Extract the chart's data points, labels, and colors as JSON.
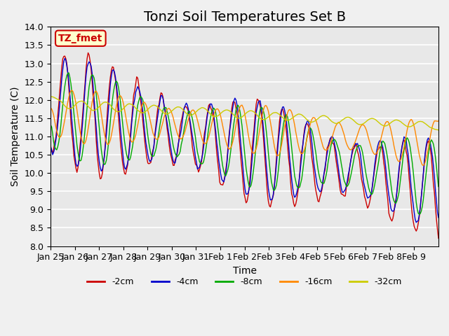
{
  "title": "Tonzi Soil Temperatures Set B",
  "xlabel": "Time",
  "ylabel": "Soil Temperature (C)",
  "ylim": [
    8.0,
    14.0
  ],
  "yticks": [
    8.0,
    8.5,
    9.0,
    9.5,
    10.0,
    10.5,
    11.0,
    11.5,
    12.0,
    12.5,
    13.0,
    13.5,
    14.0
  ],
  "series": [
    {
      "label": "-2cm",
      "color": "#cc0000"
    },
    {
      "label": "-4cm",
      "color": "#0000cc"
    },
    {
      "label": "-8cm",
      "color": "#00aa00"
    },
    {
      "label": "-16cm",
      "color": "#ff8800"
    },
    {
      "label": "-32cm",
      "color": "#cccc00"
    }
  ],
  "xtick_labels": [
    "Jan 25",
    "Jan 26",
    "Jan 27",
    "Jan 28",
    "Jan 29",
    "Jan 30",
    "Jan 31",
    "Feb 1",
    "Feb 2",
    "Feb 3",
    "Feb 4",
    "Feb 5",
    "Feb 6",
    "Feb 7",
    "Feb 8",
    "Feb 9"
  ],
  "annotation_text": "TZ_fmet",
  "annotation_color": "#cc0000",
  "annotation_bg": "#ffffcc",
  "plot_bg_color": "#e8e8e8",
  "fig_bg_color": "#f0f0f0",
  "title_fontsize": 14,
  "label_fontsize": 10,
  "tick_fontsize": 9,
  "legend_fontsize": 9,
  "n_days": 16
}
